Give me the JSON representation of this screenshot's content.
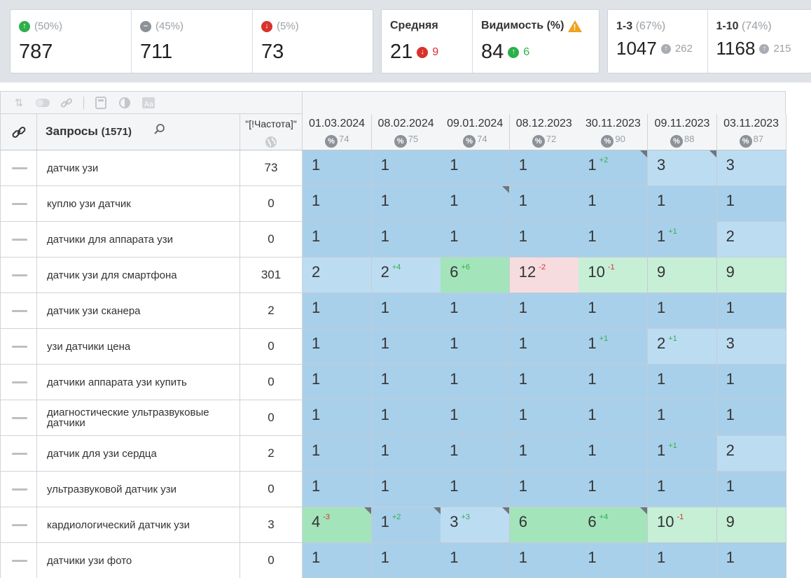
{
  "summary": {
    "up": {
      "pct": "(50%)",
      "value": "787"
    },
    "same": {
      "pct": "(45%)",
      "value": "711"
    },
    "down": {
      "pct": "(5%)",
      "value": "73"
    }
  },
  "average": {
    "title": "Средняя",
    "value": "21",
    "delta": "9",
    "delta_dir": "down"
  },
  "visibility": {
    "title": "Видимость (%)",
    "value": "84",
    "delta": "6",
    "delta_dir": "up"
  },
  "ranges": [
    {
      "label": "1-3",
      "pct": "(67%)",
      "value": "1047",
      "delta": "262"
    },
    {
      "label": "1-10",
      "pct": "(74%)",
      "value": "1168",
      "delta": "215"
    }
  ],
  "table": {
    "query_title": "Запросы",
    "query_count": "(1571)",
    "freq_label": "\"[!Частота]\"",
    "dates": [
      {
        "date": "01.03.2024",
        "vis": "74"
      },
      {
        "date": "08.02.2024",
        "vis": "75"
      },
      {
        "date": "09.01.2024",
        "vis": "74"
      },
      {
        "date": "08.12.2023",
        "vis": "72"
      },
      {
        "date": "30.11.2023",
        "vis": "90"
      },
      {
        "date": "09.11.2023",
        "vis": "88"
      },
      {
        "date": "03.11.2023",
        "vis": "87"
      }
    ],
    "rows": [
      {
        "query": "датчик узи",
        "freq": "73",
        "cells": [
          {
            "v": "1",
            "bg": "b"
          },
          {
            "v": "1",
            "bg": "b"
          },
          {
            "v": "1",
            "bg": "b"
          },
          {
            "v": "1",
            "bg": "b"
          },
          {
            "v": "1",
            "bg": "b",
            "d": "+2",
            "dc": "g",
            "corner": true
          },
          {
            "v": "3",
            "bg": "lb",
            "corner": true
          },
          {
            "v": "3",
            "bg": "lb"
          }
        ]
      },
      {
        "query": "куплю узи датчик",
        "freq": "0",
        "cells": [
          {
            "v": "1",
            "bg": "b"
          },
          {
            "v": "1",
            "bg": "b"
          },
          {
            "v": "1",
            "bg": "b",
            "corner": true
          },
          {
            "v": "1",
            "bg": "b"
          },
          {
            "v": "1",
            "bg": "b"
          },
          {
            "v": "1",
            "bg": "b"
          },
          {
            "v": "1",
            "bg": "b"
          }
        ]
      },
      {
        "query": "датчики для аппарата узи",
        "freq": "0",
        "cells": [
          {
            "v": "1",
            "bg": "b"
          },
          {
            "v": "1",
            "bg": "b"
          },
          {
            "v": "1",
            "bg": "b"
          },
          {
            "v": "1",
            "bg": "b"
          },
          {
            "v": "1",
            "bg": "b"
          },
          {
            "v": "1",
            "bg": "b",
            "d": "+1",
            "dc": "g"
          },
          {
            "v": "2",
            "bg": "lb"
          }
        ]
      },
      {
        "query": "датчик узи для смартфона",
        "freq": "301",
        "cells": [
          {
            "v": "2",
            "bg": "lb"
          },
          {
            "v": "2",
            "bg": "lb",
            "d": "+4",
            "dc": "g"
          },
          {
            "v": "6",
            "bg": "g",
            "d": "+6",
            "dc": "g"
          },
          {
            "v": "12",
            "bg": "r",
            "d": "-2",
            "dc": "r"
          },
          {
            "v": "10",
            "bg": "lg",
            "d": "-1",
            "dc": "r"
          },
          {
            "v": "9",
            "bg": "lg"
          },
          {
            "v": "9",
            "bg": "lg"
          }
        ]
      },
      {
        "query": "датчик узи сканера",
        "freq": "2",
        "cells": [
          {
            "v": "1",
            "bg": "b"
          },
          {
            "v": "1",
            "bg": "b"
          },
          {
            "v": "1",
            "bg": "b"
          },
          {
            "v": "1",
            "bg": "b"
          },
          {
            "v": "1",
            "bg": "b"
          },
          {
            "v": "1",
            "bg": "b"
          },
          {
            "v": "1",
            "bg": "b"
          }
        ]
      },
      {
        "query": "узи датчики цена",
        "freq": "0",
        "cells": [
          {
            "v": "1",
            "bg": "b"
          },
          {
            "v": "1",
            "bg": "b"
          },
          {
            "v": "1",
            "bg": "b"
          },
          {
            "v": "1",
            "bg": "b"
          },
          {
            "v": "1",
            "bg": "b",
            "d": "+1",
            "dc": "g"
          },
          {
            "v": "2",
            "bg": "lb",
            "d": "+1",
            "dc": "g"
          },
          {
            "v": "3",
            "bg": "lb"
          }
        ]
      },
      {
        "query": "датчики аппарата узи купить",
        "freq": "0",
        "cells": [
          {
            "v": "1",
            "bg": "b"
          },
          {
            "v": "1",
            "bg": "b"
          },
          {
            "v": "1",
            "bg": "b"
          },
          {
            "v": "1",
            "bg": "b"
          },
          {
            "v": "1",
            "bg": "b"
          },
          {
            "v": "1",
            "bg": "b"
          },
          {
            "v": "1",
            "bg": "b"
          }
        ]
      },
      {
        "query": "диагностические ультразвуковые датчики",
        "freq": "0",
        "cells": [
          {
            "v": "1",
            "bg": "b"
          },
          {
            "v": "1",
            "bg": "b"
          },
          {
            "v": "1",
            "bg": "b"
          },
          {
            "v": "1",
            "bg": "b"
          },
          {
            "v": "1",
            "bg": "b"
          },
          {
            "v": "1",
            "bg": "b"
          },
          {
            "v": "1",
            "bg": "b"
          }
        ]
      },
      {
        "query": "датчик для узи сердца",
        "freq": "2",
        "cells": [
          {
            "v": "1",
            "bg": "b"
          },
          {
            "v": "1",
            "bg": "b"
          },
          {
            "v": "1",
            "bg": "b"
          },
          {
            "v": "1",
            "bg": "b"
          },
          {
            "v": "1",
            "bg": "b"
          },
          {
            "v": "1",
            "bg": "b",
            "d": "+1",
            "dc": "g"
          },
          {
            "v": "2",
            "bg": "lb"
          }
        ]
      },
      {
        "query": "ультразвуковой датчик узи",
        "freq": "0",
        "cells": [
          {
            "v": "1",
            "bg": "b"
          },
          {
            "v": "1",
            "bg": "b"
          },
          {
            "v": "1",
            "bg": "b"
          },
          {
            "v": "1",
            "bg": "b"
          },
          {
            "v": "1",
            "bg": "b"
          },
          {
            "v": "1",
            "bg": "b"
          },
          {
            "v": "1",
            "bg": "b"
          }
        ]
      },
      {
        "query": "кардиологический датчик узи",
        "freq": "3",
        "cells": [
          {
            "v": "4",
            "bg": "g",
            "d": "-3",
            "dc": "r",
            "corner": true
          },
          {
            "v": "1",
            "bg": "b",
            "d": "+2",
            "dc": "g",
            "corner": true
          },
          {
            "v": "3",
            "bg": "lb",
            "d": "+3",
            "dc": "g",
            "corner": true
          },
          {
            "v": "6",
            "bg": "g"
          },
          {
            "v": "6",
            "bg": "g",
            "d": "+4",
            "dc": "g",
            "corner": true
          },
          {
            "v": "10",
            "bg": "lg",
            "d": "-1",
            "dc": "r"
          },
          {
            "v": "9",
            "bg": "lg"
          }
        ]
      },
      {
        "query": "датчики узи фото",
        "freq": "0",
        "cells": [
          {
            "v": "1",
            "bg": "b"
          },
          {
            "v": "1",
            "bg": "b"
          },
          {
            "v": "1",
            "bg": "b"
          },
          {
            "v": "1",
            "bg": "b"
          },
          {
            "v": "1",
            "bg": "b"
          },
          {
            "v": "1",
            "bg": "b"
          },
          {
            "v": "1",
            "bg": "b"
          }
        ]
      }
    ]
  }
}
